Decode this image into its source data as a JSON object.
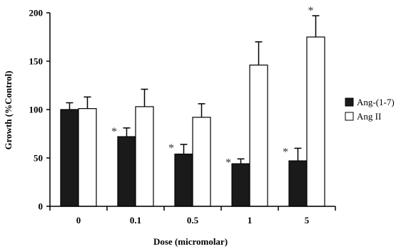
{
  "chart_data": {
    "type": "bar",
    "categories": [
      "0",
      "0.1",
      "0.5",
      "1",
      "5"
    ],
    "xlabel": "Dose (micromolar)",
    "ylabel": "Growth (%Control)",
    "ylim": [
      0,
      200
    ],
    "yticks": [
      0,
      50,
      100,
      150,
      200
    ],
    "grid": false,
    "legend_position": "right",
    "series": [
      {
        "name": "Ang-(1-7)",
        "color": "#1a1a1a",
        "values": [
          100,
          72,
          54,
          44,
          47
        ],
        "errors": [
          7,
          9,
          10,
          5,
          13
        ],
        "significant": [
          false,
          true,
          true,
          true,
          true
        ]
      },
      {
        "name": "Ang II",
        "color": "#ffffff",
        "values": [
          101,
          103,
          92,
          146,
          175
        ],
        "errors": [
          12,
          18,
          14,
          24,
          22
        ],
        "significant": [
          false,
          false,
          false,
          false,
          true
        ]
      }
    ],
    "significance_marker": "*"
  }
}
